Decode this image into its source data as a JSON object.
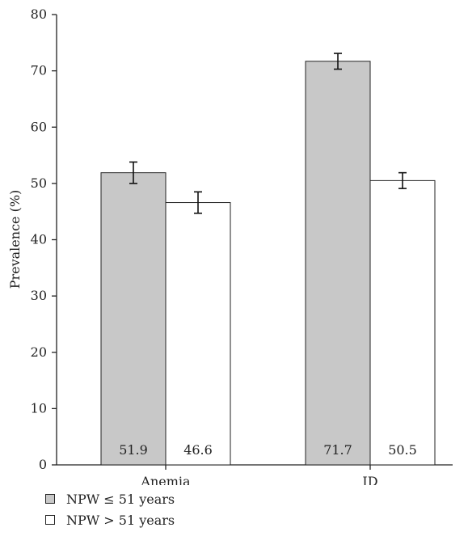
{
  "chart_data": {
    "type": "bar",
    "categories": [
      "Anemia",
      "ID"
    ],
    "ylabel": "Prevalence (%)",
    "xlabel": "",
    "ylim": [
      0,
      80
    ],
    "yticks": [
      0,
      10,
      20,
      30,
      40,
      50,
      60,
      70,
      80
    ],
    "grid": false,
    "legend_position": "bottom-left",
    "series": [
      {
        "name": "NPW ≤ 51 years",
        "color": "#c8c8c8",
        "values": [
          51.9,
          71.7
        ],
        "error": [
          1.9,
          1.4
        ],
        "labels": [
          "51.9",
          "71.7"
        ]
      },
      {
        "name": "NPW > 51 years",
        "color": "#ffffff",
        "values": [
          46.6,
          50.5
        ],
        "error": [
          1.9,
          1.4
        ],
        "labels": [
          "46.6",
          "50.5"
        ]
      }
    ]
  }
}
